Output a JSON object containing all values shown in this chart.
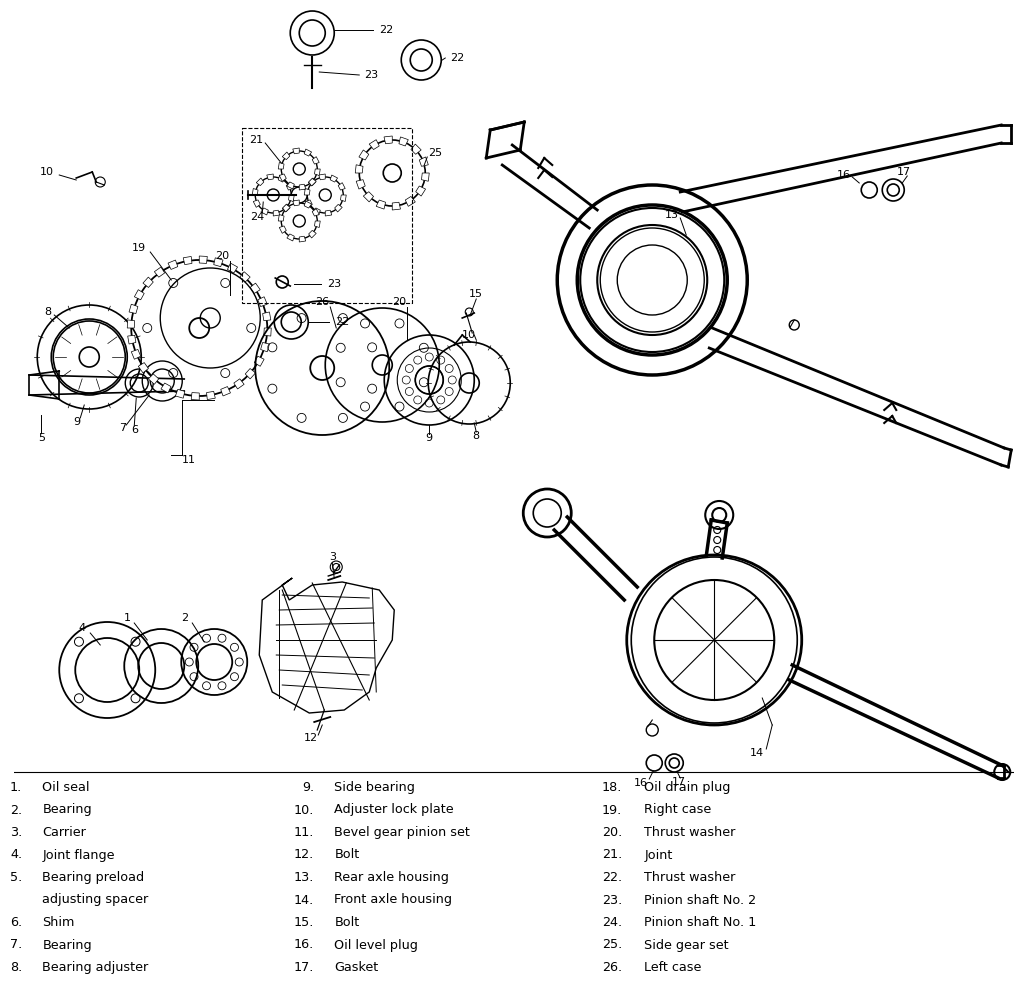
{
  "background_color": "#ffffff",
  "line_color": "#000000",
  "legend_col1": [
    [
      "1.",
      "Oil seal"
    ],
    [
      "2.",
      "Bearing"
    ],
    [
      "3.",
      "Carrier"
    ],
    [
      "4.",
      "Joint flange"
    ],
    [
      "5.",
      "Bearing preload"
    ],
    [
      "",
      "adjusting spacer"
    ],
    [
      "6.",
      "Shim"
    ],
    [
      "7.",
      "Bearing"
    ],
    [
      "8.",
      "Bearing adjuster"
    ]
  ],
  "legend_col2": [
    [
      "9.",
      "Side bearing"
    ],
    [
      "10.",
      "Adjuster lock plate"
    ],
    [
      "11.",
      "Bevel gear pinion set"
    ],
    [
      "12.",
      "Bolt"
    ],
    [
      "13.",
      "Rear axle housing"
    ],
    [
      "14.",
      "Front axle housing"
    ],
    [
      "15.",
      "Bolt"
    ],
    [
      "16.",
      "Oil level plug"
    ],
    [
      "17.",
      "Gasket"
    ]
  ],
  "legend_col3": [
    [
      "18.",
      "Oil drain plug"
    ],
    [
      "19.",
      "Right case"
    ],
    [
      "20.",
      "Thrust washer"
    ],
    [
      "21.",
      "Joint"
    ],
    [
      "22.",
      "Thrust washer"
    ],
    [
      "23.",
      "Pinion shaft No. 2"
    ],
    [
      "24.",
      "Pinion shaft No. 1"
    ],
    [
      "25.",
      "Side gear set"
    ],
    [
      "26.",
      "Left case"
    ]
  ],
  "fig_width": 10.0,
  "fig_height": 9.64,
  "dpi": 100
}
